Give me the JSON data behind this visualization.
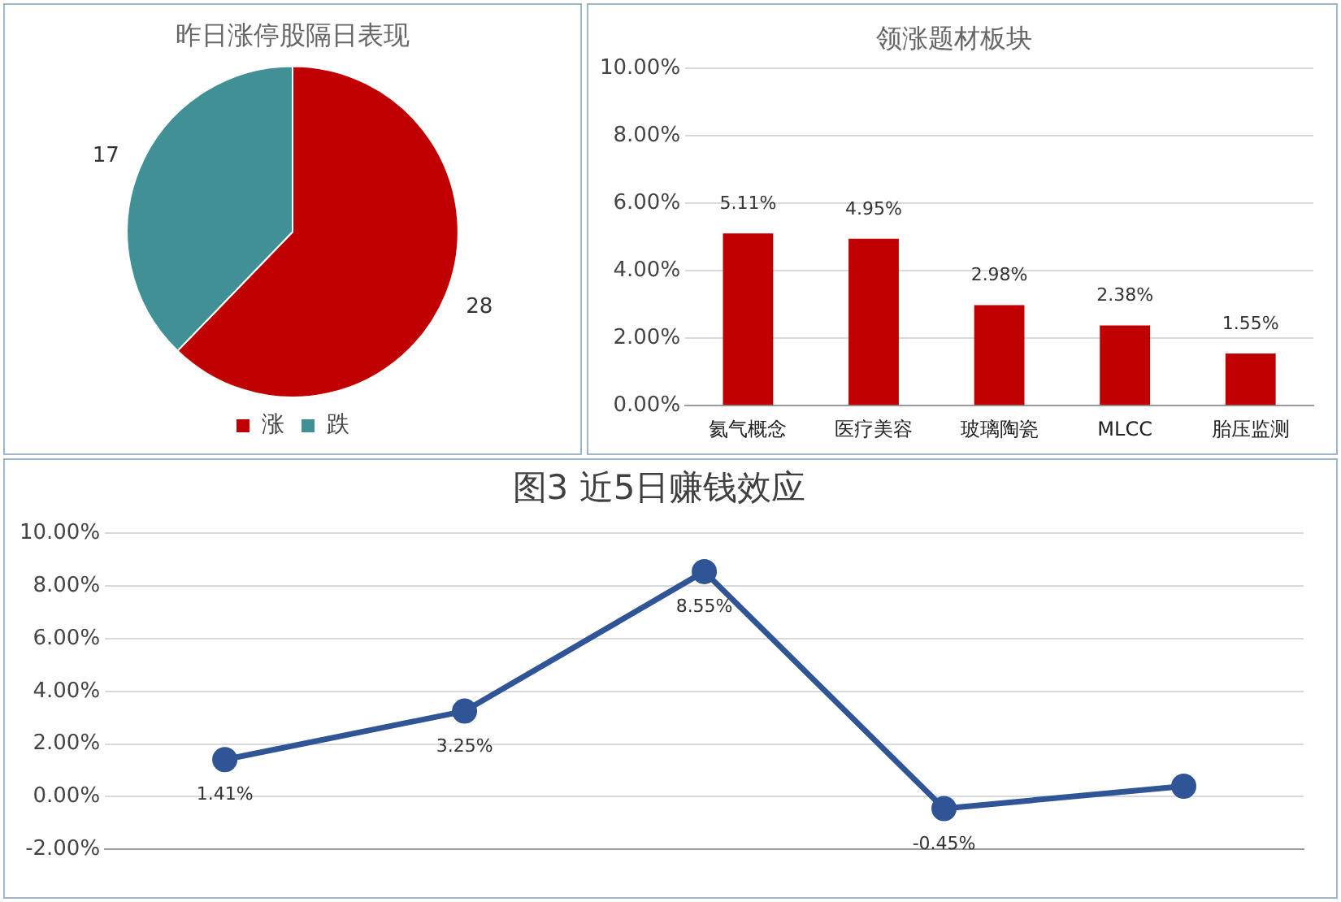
{
  "chart_data": [
    {
      "type": "pie",
      "title": "昨日涨停股隔日表现",
      "categories": [
        "涨",
        "跌"
      ],
      "values": [
        28,
        17
      ],
      "colors": [
        "#c00000",
        "#3f9196"
      ],
      "data_labels": true,
      "legend": "bottom"
    },
    {
      "type": "bar",
      "title": "领涨题材板块",
      "categories": [
        "氦气概念",
        "医疗美容",
        "玻璃陶瓷",
        "MLCC",
        "胎压监测"
      ],
      "values": [
        5.11,
        4.95,
        2.98,
        2.38,
        1.55
      ],
      "value_labels": [
        "5.11%",
        "4.95%",
        "2.98%",
        "2.38%",
        "1.55%"
      ],
      "color": "#c00000",
      "ylim": [
        0,
        10
      ],
      "yticks": [
        {
          "value": 0,
          "label": "0.00%"
        },
        {
          "value": 2,
          "label": "2.00%"
        },
        {
          "value": 4,
          "label": "4.00%"
        },
        {
          "value": 6,
          "label": "6.00%"
        },
        {
          "value": 8,
          "label": "8.00%"
        },
        {
          "value": 10,
          "label": "10.00%"
        }
      ],
      "grid": "y",
      "legend": false
    },
    {
      "type": "line",
      "title": "图3 近5日赚钱效应",
      "categories": [
        null,
        null,
        null,
        null,
        null
      ],
      "values": [
        1.41,
        3.25,
        8.55,
        -0.45,
        0.4
      ],
      "value_labels": [
        "1.41%",
        "3.25%",
        "8.55%",
        "-0.45%",
        null
      ],
      "color": "#2f5597",
      "marker": "circle",
      "line_style": "solid",
      "ylim": [
        -2,
        10
      ],
      "yticks": [
        {
          "value": -2,
          "label": "-2.00%"
        },
        {
          "value": 0,
          "label": "0.00%"
        },
        {
          "value": 2,
          "label": "2.00%"
        },
        {
          "value": 4,
          "label": "4.00%"
        },
        {
          "value": 6,
          "label": "6.00%"
        },
        {
          "value": 8,
          "label": "8.00%"
        },
        {
          "value": 10,
          "label": "10.00%"
        }
      ],
      "grid": "y",
      "legend": false
    }
  ]
}
